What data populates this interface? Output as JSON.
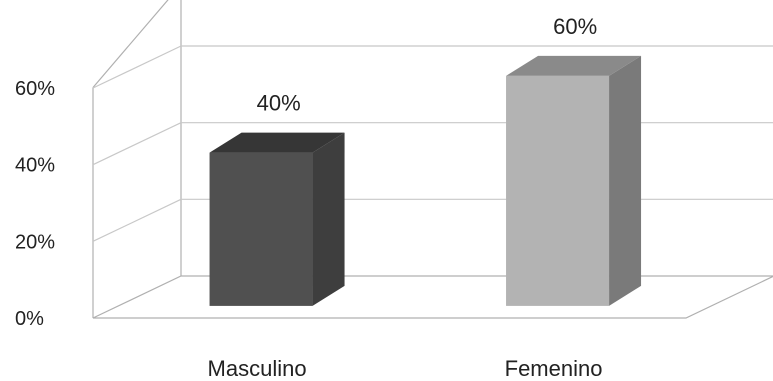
{
  "chart_data": {
    "type": "bar",
    "categories": [
      "Masculino",
      "Femenino"
    ],
    "values": [
      40,
      60
    ],
    "data_labels": [
      "40%",
      "60%"
    ],
    "y_ticks": [
      "0%",
      "20%",
      "40%",
      "60%"
    ],
    "ylim": [
      0,
      60
    ],
    "grid": true,
    "legend": "none",
    "bar_colors": [
      {
        "front": "#505050",
        "top": "#363636",
        "side": "#3e3e3e"
      },
      {
        "front": "#b3b3b3",
        "top": "#8a8a8a",
        "side": "#7a7a7a"
      }
    ],
    "grid_color": "#c8c8c8",
    "outline_color": "#b0b0b0"
  }
}
